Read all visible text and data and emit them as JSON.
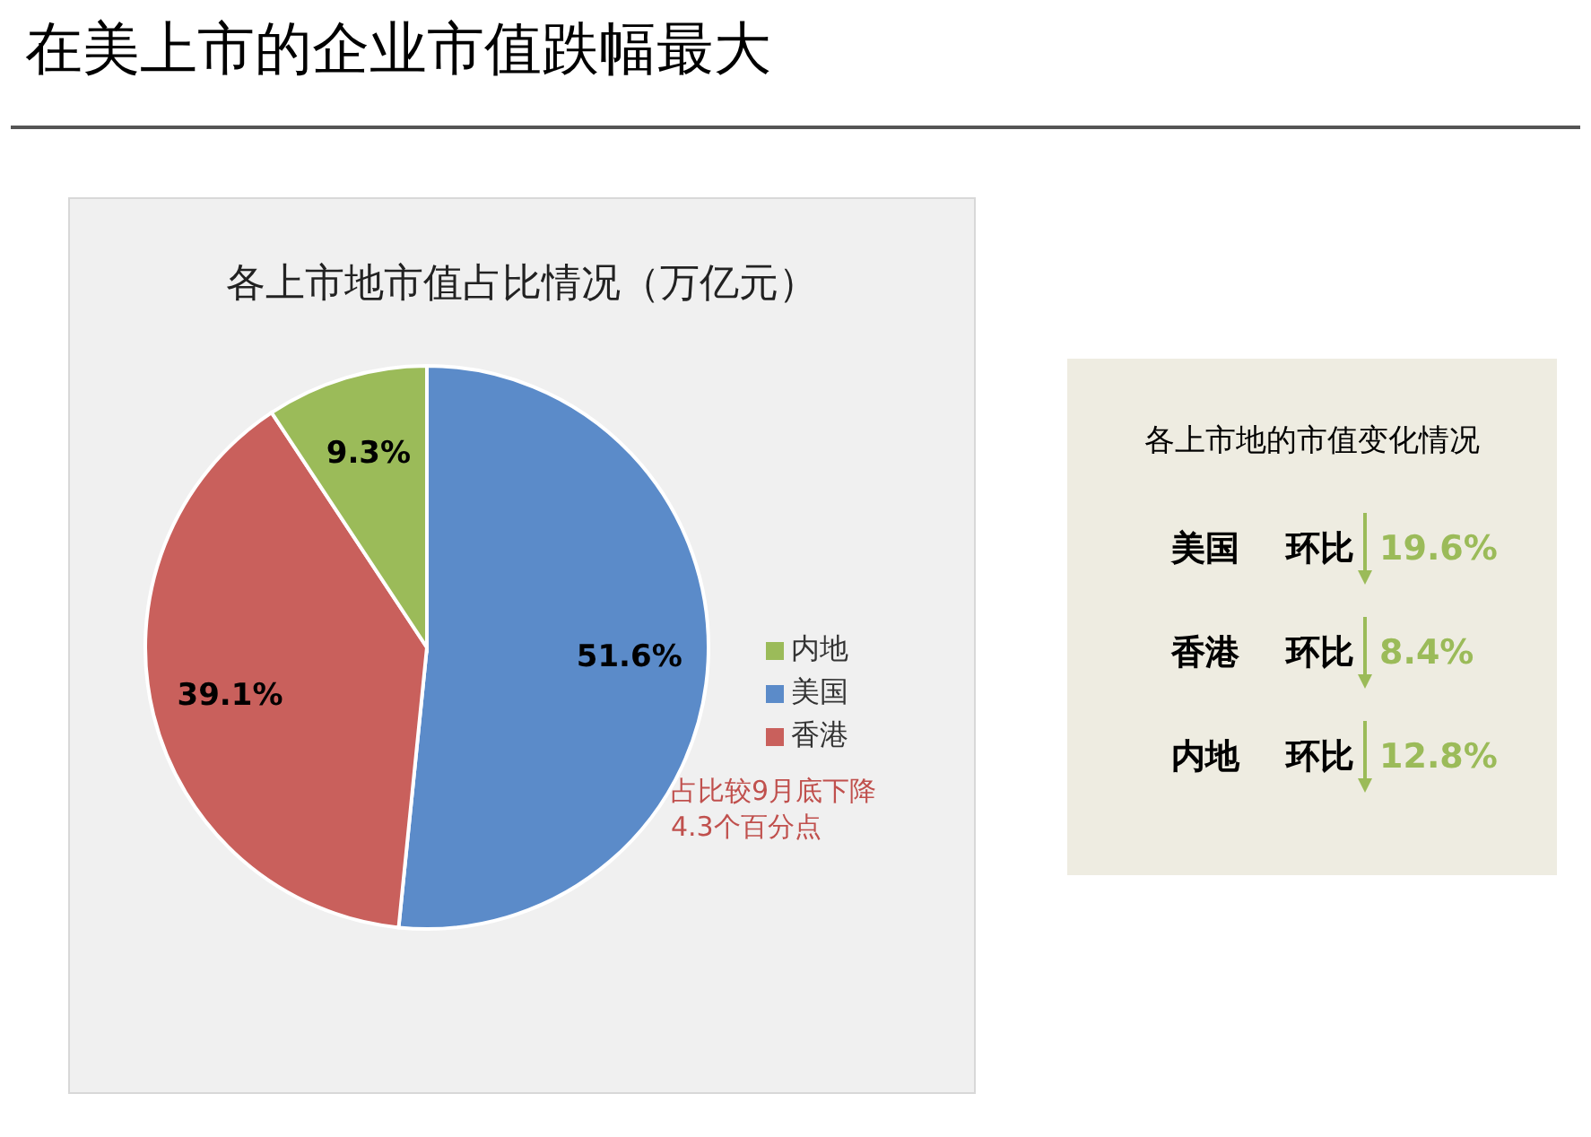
{
  "chart_data": [
    {
      "type": "pie",
      "title": "在美上市的企业市值跌幅最大",
      "subtitle": "各上市地市值占比情况（万亿元）",
      "categories": [
        "美国",
        "香港",
        "内地"
      ],
      "values": [
        51.6,
        39.1,
        9.3
      ],
      "colors": [
        "#5b8bc9",
        "#c9605c",
        "#9bbb59"
      ],
      "value_labels": [
        "51.6%",
        "39.1%",
        "9.3%"
      ],
      "legend": "right",
      "annotations": [
        "占比较9月底下降4.3个百分点"
      ]
    },
    {
      "type": "other",
      "title": "各上市地的市值变化情况",
      "categories": [
        "美国",
        "香港",
        "内地"
      ],
      "annotations": [
        "环比",
        "环比",
        "环比"
      ],
      "value_labels": [
        "19.6%",
        "8.4%",
        "12.8%"
      ]
    }
  ]
}
